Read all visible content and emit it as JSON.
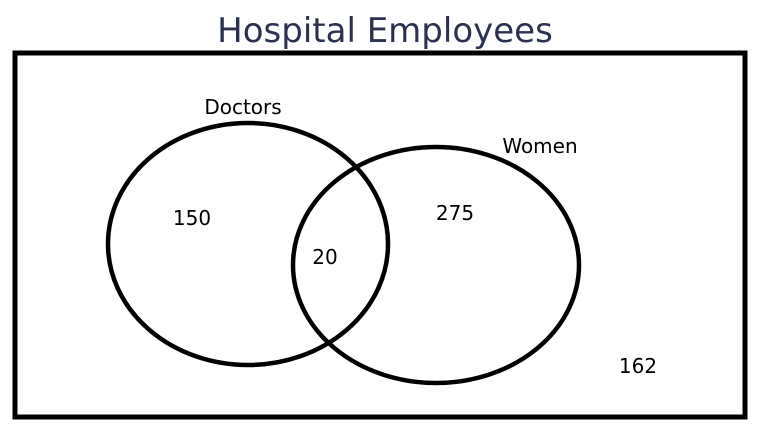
{
  "title": "Hospital Employees",
  "sets": {
    "a": {
      "label": "Doctors"
    },
    "b": {
      "label": "Women"
    }
  },
  "regions": {
    "only_a": "150",
    "both": "20",
    "only_b": "275",
    "neither": "162"
  },
  "colors": {
    "title": "#2b3250",
    "stroke": "#000000",
    "background": "#ffffff"
  }
}
